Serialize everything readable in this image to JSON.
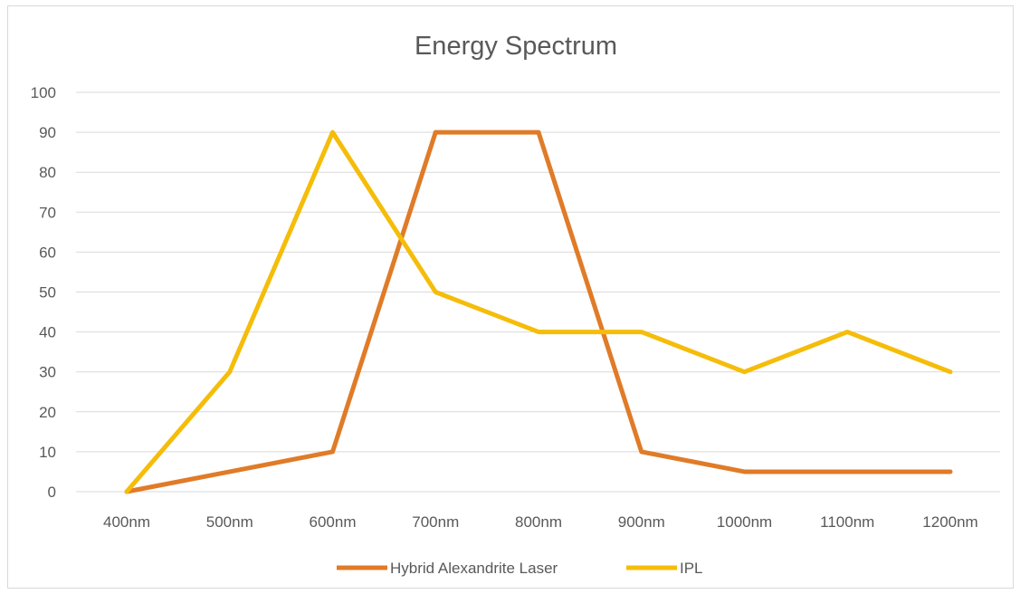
{
  "chart_data": {
    "type": "line",
    "title": "Energy Spectrum",
    "xlabel": "",
    "ylabel": "",
    "categories": [
      "400nm",
      "500nm",
      "600nm",
      "700nm",
      "800nm",
      "900nm",
      "1000nm",
      "1100nm",
      "1200nm"
    ],
    "ylim": [
      0,
      100
    ],
    "yticks": [
      0,
      10,
      20,
      30,
      40,
      50,
      60,
      70,
      80,
      90,
      100
    ],
    "grid": true,
    "legend_position": "bottom",
    "series": [
      {
        "name": "Hybrid Alexandrite Laser",
        "color": "#e07b28",
        "values": [
          0,
          5,
          10,
          90,
          90,
          10,
          5,
          5,
          5
        ]
      },
      {
        "name": "IPL",
        "color": "#f5bd0a",
        "values": [
          0,
          30,
          90,
          50,
          40,
          40,
          30,
          40,
          30
        ]
      }
    ]
  }
}
